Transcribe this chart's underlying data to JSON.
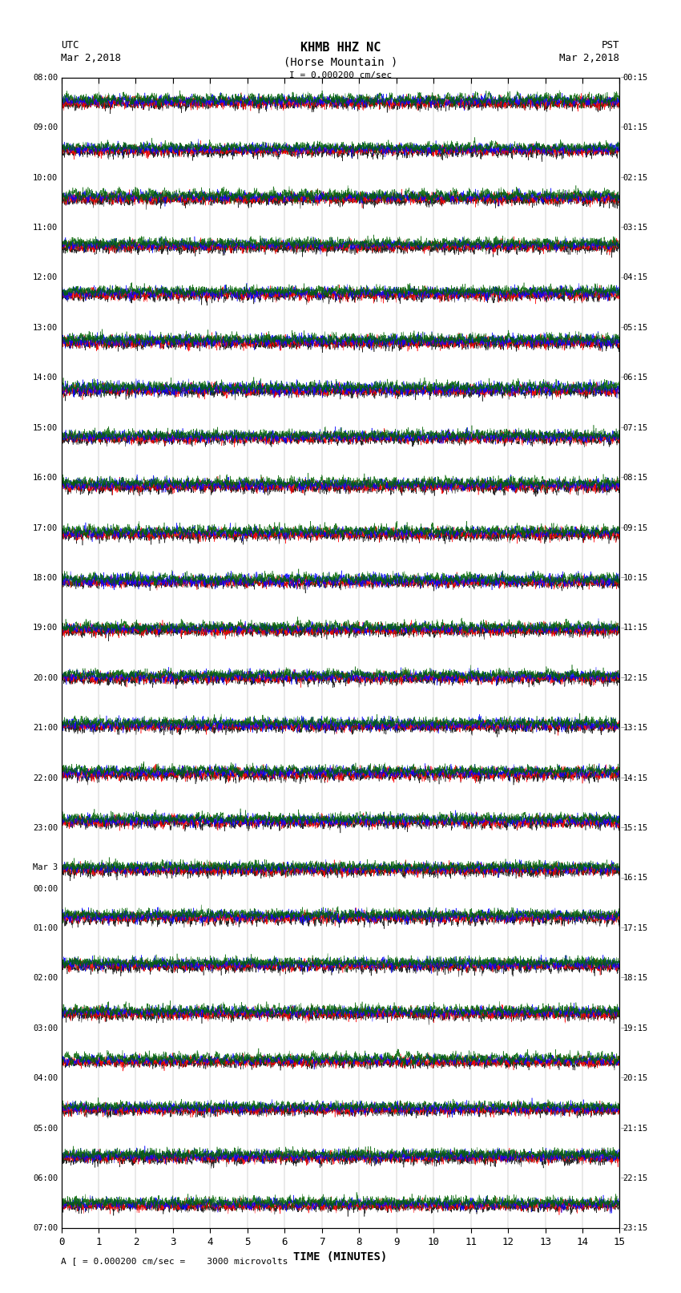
{
  "title_line1": "KHMB HHZ NC",
  "title_line2": "(Horse Mountain )",
  "scale_label": "I = 0.000200 cm/sec",
  "utc_label": "UTC",
  "utc_date": "Mar 2,2018",
  "pst_label": "PST",
  "pst_date": "Mar 2,2018",
  "bottom_label": "A [ = 0.000200 cm/sec =    3000 microvolts",
  "xlabel": "TIME (MINUTES)",
  "left_times_utc": [
    "08:00",
    "09:00",
    "10:00",
    "11:00",
    "12:00",
    "13:00",
    "14:00",
    "15:00",
    "16:00",
    "17:00",
    "18:00",
    "19:00",
    "20:00",
    "21:00",
    "22:00",
    "23:00",
    "Mar 3\n00:00",
    "01:00",
    "02:00",
    "03:00",
    "04:00",
    "05:00",
    "06:00",
    "07:00"
  ],
  "right_times_pst": [
    "00:15",
    "01:15",
    "02:15",
    "03:15",
    "04:15",
    "05:15",
    "06:15",
    "07:15",
    "08:15",
    "09:15",
    "10:15",
    "11:15",
    "12:15",
    "13:15",
    "14:15",
    "15:15",
    "16:15",
    "17:15",
    "18:15",
    "19:15",
    "20:15",
    "21:15",
    "22:15",
    "23:15"
  ],
  "n_traces": 24,
  "n_segments": 4,
  "segment_colors": [
    "#000000",
    "#FF0000",
    "#0000FF",
    "#006400"
  ],
  "trace_amplitude": 0.45,
  "x_min": 0,
  "x_max": 15,
  "x_ticks": [
    0,
    1,
    2,
    3,
    4,
    5,
    6,
    7,
    8,
    9,
    10,
    11,
    12,
    13,
    14,
    15
  ],
  "background_color": "#FFFFFF",
  "fig_width": 8.5,
  "fig_height": 16.13,
  "dpi": 100
}
